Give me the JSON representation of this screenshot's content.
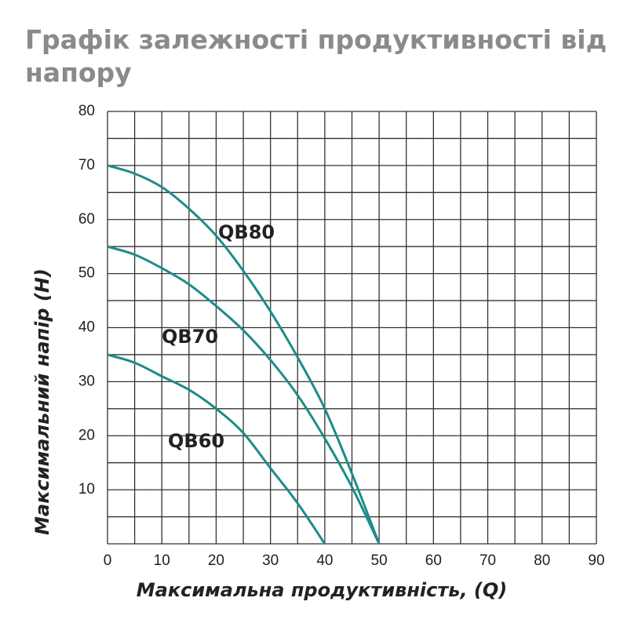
{
  "chart_data": {
    "type": "line",
    "title_lines": [
      "Графік залежності продуктивності від",
      "напору"
    ],
    "x_label": "Максимальна продуктивність, (Q)",
    "y_label": "Максимальний напір (H)",
    "x": [
      0,
      5,
      10,
      15,
      20,
      25,
      30,
      35,
      40,
      45,
      50
    ],
    "series": [
      {
        "name": "QB80",
        "color": "#1e8c88",
        "values": [
          70,
          68.5,
          66,
          62,
          57,
          50.5,
          43,
          34.5,
          25,
          13,
          0
        ]
      },
      {
        "name": "QB70",
        "color": "#1e8c88",
        "values": [
          55,
          53.5,
          51,
          48,
          44,
          39.5,
          34,
          27.5,
          19.5,
          10.5,
          0
        ]
      },
      {
        "name": "QB60",
        "color": "#1e8c88",
        "values": [
          35,
          33.5,
          31,
          28.5,
          25,
          20.5,
          14,
          7.5,
          0,
          null,
          null
        ]
      }
    ],
    "xlim": [
      0,
      90
    ],
    "xticks": [
      0,
      10,
      20,
      30,
      40,
      50,
      60,
      70,
      80,
      90
    ],
    "ylim": [
      0,
      80
    ],
    "yticks": [
      10,
      20,
      30,
      40,
      50,
      60,
      70,
      80
    ],
    "grid": true
  }
}
